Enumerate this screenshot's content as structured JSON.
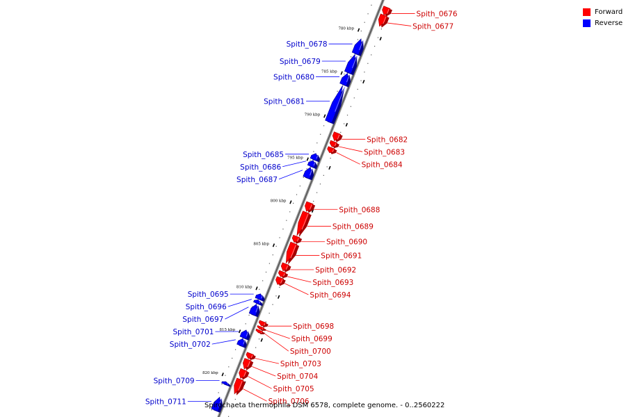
{
  "legend": {
    "forward": {
      "label": "Forward",
      "color": "#ff0000"
    },
    "reverse": {
      "label": "Reverse",
      "color": "#0000ff"
    }
  },
  "caption": "Spirochaeta thermophila DSM 6578, complete genome. - 0..2560222",
  "ticks": [
    {
      "label": "780 kbp",
      "kbp": 780
    },
    {
      "label": "785 kbp",
      "kbp": 785
    },
    {
      "label": "790 kbp",
      "kbp": 790
    },
    {
      "label": "795 kbp",
      "kbp": 795
    },
    {
      "label": "800 kbp",
      "kbp": 800
    },
    {
      "label": "805 kbp",
      "kbp": 805
    },
    {
      "label": "810 kbp",
      "kbp": 810
    },
    {
      "label": "815 kbp",
      "kbp": 815
    },
    {
      "label": "820 kbp",
      "kbp": 820
    }
  ],
  "genes": [
    {
      "name": "Spith_0676",
      "strand": "forward",
      "start": 776.6,
      "end": 777.5
    },
    {
      "name": "Spith_0677",
      "strand": "forward",
      "start": 777.5,
      "end": 778.8
    },
    {
      "name": "Spith_0678",
      "strand": "reverse",
      "start": 780.8,
      "end": 782.5
    },
    {
      "name": "Spith_0679",
      "strand": "reverse",
      "start": 782.6,
      "end": 784.7
    },
    {
      "name": "Spith_0680",
      "strand": "reverse",
      "start": 784.8,
      "end": 786.1
    },
    {
      "name": "Spith_0681",
      "strand": "reverse",
      "start": 786.2,
      "end": 790.4
    },
    {
      "name": "Spith_0682",
      "strand": "forward",
      "start": 791.2,
      "end": 792.1
    },
    {
      "name": "Spith_0683",
      "strand": "forward",
      "start": 792.2,
      "end": 792.8
    },
    {
      "name": "Spith_0684",
      "strand": "forward",
      "start": 792.9,
      "end": 793.5
    },
    {
      "name": "Spith_0685",
      "strand": "reverse",
      "start": 794.1,
      "end": 794.8
    },
    {
      "name": "Spith_0686",
      "strand": "reverse",
      "start": 794.9,
      "end": 795.6
    },
    {
      "name": "Spith_0687",
      "strand": "reverse",
      "start": 795.7,
      "end": 796.9
    },
    {
      "name": "Spith_0688",
      "strand": "forward",
      "start": 799.3,
      "end": 800.3
    },
    {
      "name": "Spith_0689",
      "strand": "forward",
      "start": 800.4,
      "end": 803.1
    },
    {
      "name": "Spith_0690",
      "strand": "forward",
      "start": 803.2,
      "end": 803.9
    },
    {
      "name": "Spith_0691",
      "strand": "forward",
      "start": 804.0,
      "end": 806.3
    },
    {
      "name": "Spith_0692",
      "strand": "forward",
      "start": 806.4,
      "end": 807.2
    },
    {
      "name": "Spith_0693",
      "strand": "forward",
      "start": 807.3,
      "end": 807.9
    },
    {
      "name": "Spith_0694",
      "strand": "forward",
      "start": 808.0,
      "end": 808.8
    },
    {
      "name": "Spith_0695",
      "strand": "reverse",
      "start": 810.4,
      "end": 811.0
    },
    {
      "name": "Spith_0696",
      "strand": "reverse",
      "start": 811.1,
      "end": 811.5
    },
    {
      "name": "Spith_0697",
      "strand": "reverse",
      "start": 811.6,
      "end": 812.8
    },
    {
      "name": "Spith_0698",
      "strand": "forward",
      "start": 813.1,
      "end": 813.6
    },
    {
      "name": "Spith_0699",
      "strand": "forward",
      "start": 813.7,
      "end": 814.0
    },
    {
      "name": "Spith_0700",
      "strand": "forward",
      "start": 814.1,
      "end": 814.4
    },
    {
      "name": "Spith_0701",
      "strand": "reverse",
      "start": 814.6,
      "end": 815.5
    },
    {
      "name": "Spith_0702",
      "strand": "reverse",
      "start": 815.6,
      "end": 816.4
    },
    {
      "name": "Spith_0703",
      "strand": "forward",
      "start": 816.8,
      "end": 817.4
    },
    {
      "name": "Spith_0704",
      "strand": "forward",
      "start": 817.5,
      "end": 818.6
    },
    {
      "name": "Spith_0705",
      "strand": "forward",
      "start": 818.7,
      "end": 819.7
    },
    {
      "name": "Spith_0706",
      "strand": "forward",
      "start": 819.8,
      "end": 821.5
    },
    {
      "name": "Spith_0709",
      "strand": "reverse",
      "start": 820.6,
      "end": 820.9
    },
    {
      "name": "Spith_0711",
      "strand": "reverse",
      "start": 822.4,
      "end": 823.9
    }
  ]
}
